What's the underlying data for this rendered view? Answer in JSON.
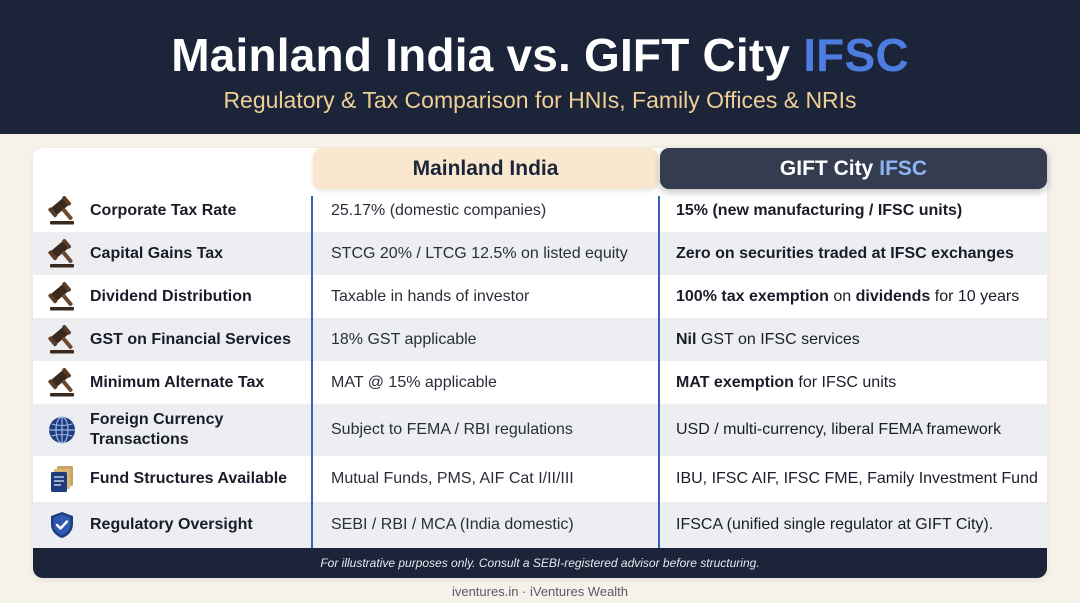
{
  "header": {
    "title_main": "Mainland India vs. GIFT City",
    "title_accent": "IFSC",
    "subtitle": "Regulatory & Tax Comparison for HNIs, Family Offices & NRIs"
  },
  "columns": {
    "mainland": "Mainland India",
    "gift_main": "GIFT City",
    "gift_accent": "IFSC"
  },
  "rows": [
    {
      "icon": "gavel-icon",
      "label": "Corporate Tax Rate",
      "mainland": "25.17% (domestic companies)",
      "gift": [
        {
          "t": "15% (new manufacturing / IFSC units)",
          "b": true
        }
      ]
    },
    {
      "icon": "gavel-icon",
      "label": "Capital Gains Tax",
      "mainland": "STCG 20% / LTCG 12.5% on listed equity",
      "gift": [
        {
          "t": "Zero on securities traded at IFSC exchanges",
          "b": true
        }
      ]
    },
    {
      "icon": "gavel-icon",
      "label": "Dividend Distribution",
      "mainland": "Taxable in hands of investor",
      "gift": [
        {
          "t": "100% tax exemption",
          "b": true
        },
        {
          "t": " on ",
          "b": false
        },
        {
          "t": "dividends",
          "b": true
        },
        {
          "t": " for 10 years",
          "b": false
        }
      ]
    },
    {
      "icon": "gavel-icon",
      "label": "GST on Financial Services",
      "mainland": "18% GST applicable",
      "gift": [
        {
          "t": "Nil",
          "b": true
        },
        {
          "t": " GST on IFSC services",
          "b": false
        }
      ]
    },
    {
      "icon": "gavel-icon",
      "label": "Minimum Alternate Tax",
      "mainland": "MAT @ 15% applicable",
      "gift": [
        {
          "t": "MAT exemption",
          "b": true
        },
        {
          "t": " for IFSC units",
          "b": false
        }
      ]
    },
    {
      "icon": "globe-icon",
      "label": "Foreign Currency Transactions",
      "mainland": "Subject to FEMA / RBI regulations",
      "gift": [
        {
          "t": "USD / multi-currency, liberal FEMA framework",
          "b": false
        }
      ]
    },
    {
      "icon": "documents-icon",
      "label": "Fund Structures Available",
      "mainland": "Mutual Funds, PMS, AIF Cat I/II/III",
      "gift": [
        {
          "t": "IBU, IFSC AIF, IFSC FME, Family Investment Fund",
          "b": false
        }
      ]
    },
    {
      "icon": "shield-check-icon",
      "label": "Regulatory Oversight",
      "mainland": "SEBI / RBI / MCA (India domestic)",
      "gift": [
        {
          "t": "IFSCA (unified single regulator at GIFT City).",
          "b": false
        }
      ]
    }
  ],
  "disclaimer": "For illustrative purposes only. Consult a SEBI-registered advisor before structuring.",
  "credit": "iventures.in · iVentures Wealth",
  "colors": {
    "navy": "#1b2439",
    "accent_blue": "#4d7de0",
    "gold": "#efcf96",
    "mainland_header": "#f9e8cf",
    "gift_header": "#343d50",
    "divider_blue": "#3a5fb8"
  }
}
